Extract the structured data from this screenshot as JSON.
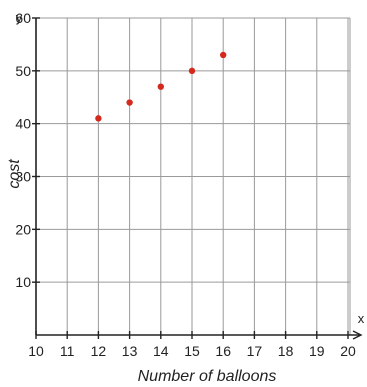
{
  "chart_data": {
    "type": "scatter",
    "xlabel": "Number of balloons",
    "ylabel": "cost",
    "x_axis_letter": "x",
    "y_axis_letter": "y",
    "xlim": [
      10,
      20
    ],
    "ylim": [
      0,
      60
    ],
    "x_ticks": [
      10,
      11,
      12,
      13,
      14,
      15,
      16,
      17,
      18,
      19,
      20
    ],
    "y_ticks": [
      10,
      20,
      30,
      40,
      50,
      60
    ],
    "grid": true,
    "series": [
      {
        "color": "#d42a1e",
        "points": [
          {
            "x": 12,
            "y": 41
          },
          {
            "x": 13,
            "y": 44
          },
          {
            "x": 14,
            "y": 47
          },
          {
            "x": 15,
            "y": 50
          },
          {
            "x": 16,
            "y": 53
          }
        ]
      }
    ],
    "colors": {
      "grid": "#9a9a9a",
      "axis": "#222222",
      "point": "#d42a1e"
    }
  }
}
